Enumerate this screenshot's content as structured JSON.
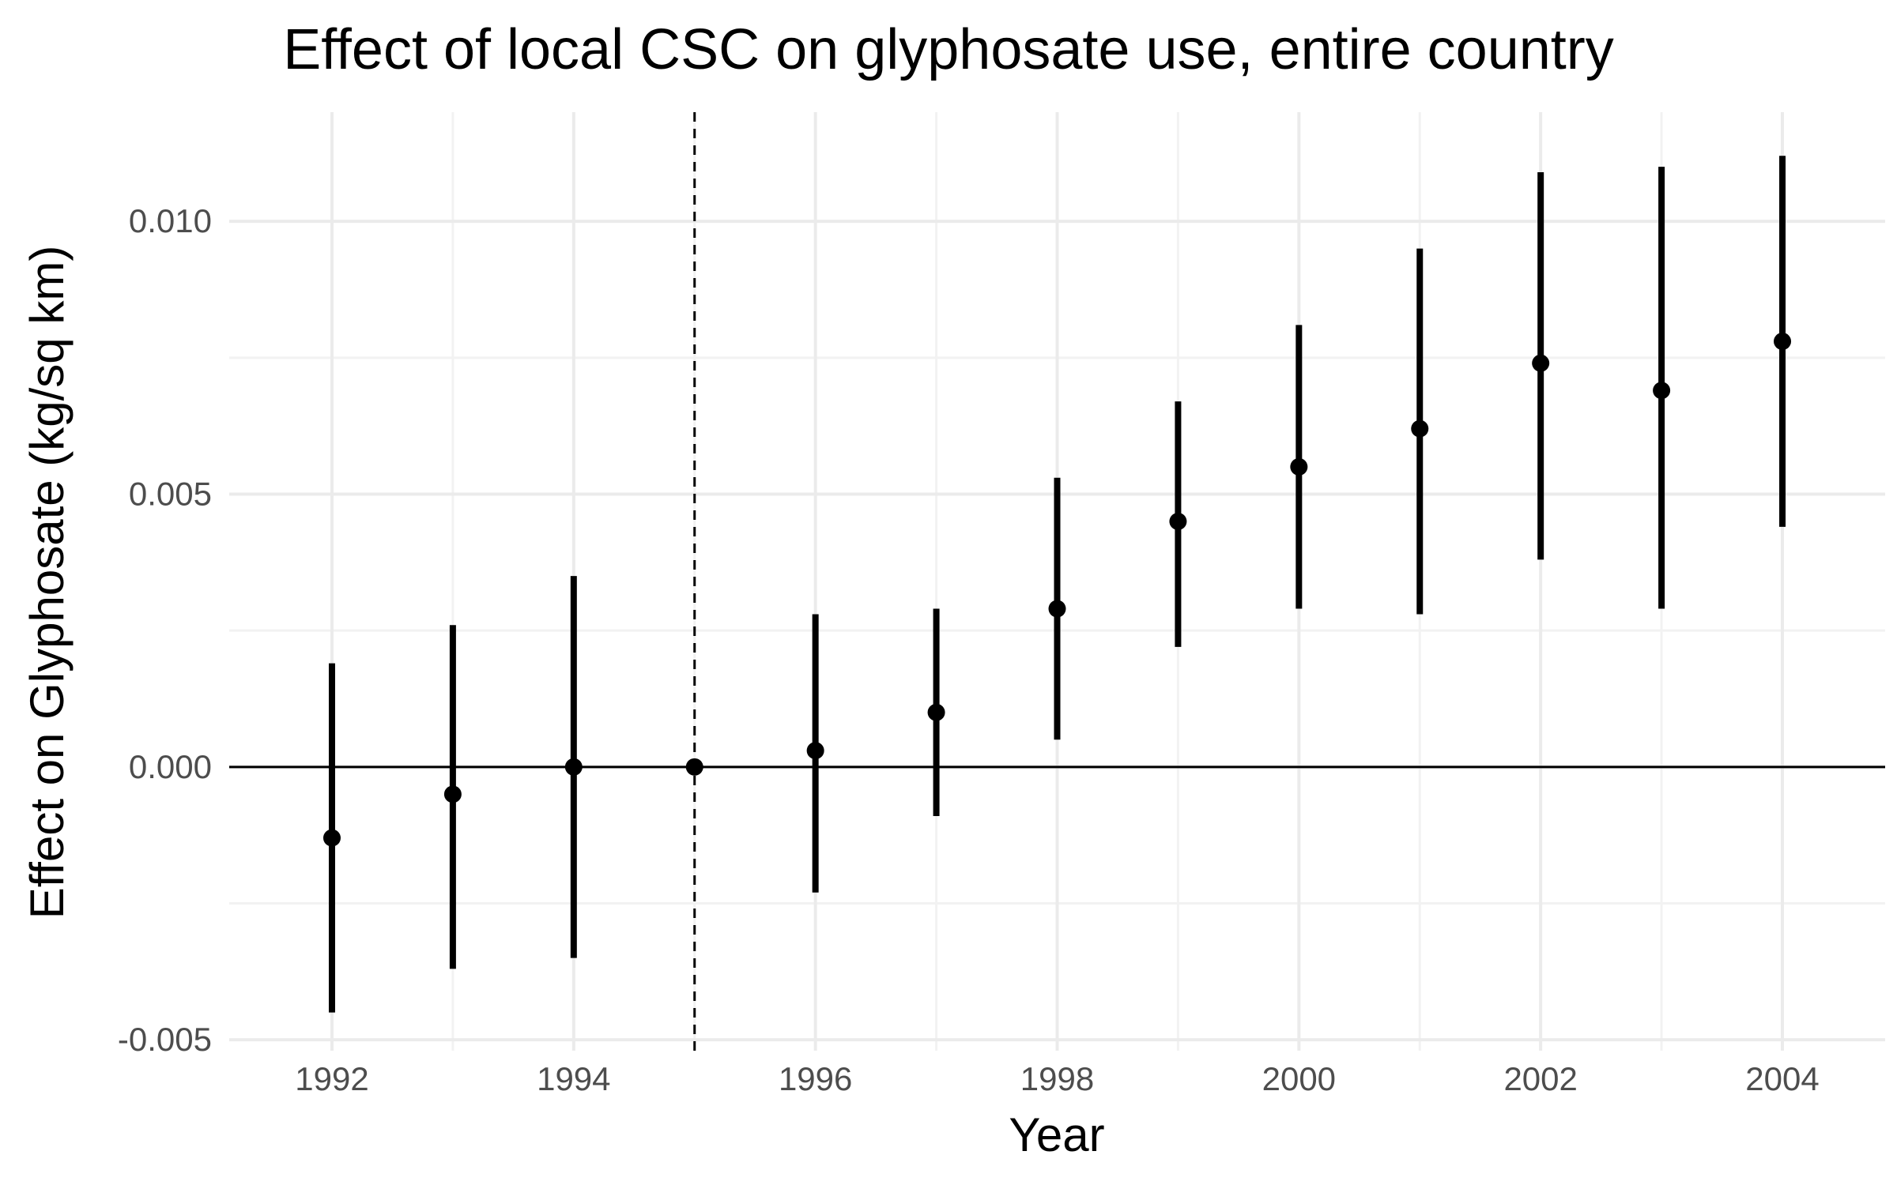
{
  "chart_data": {
    "type": "errorbar",
    "title": "Effect of local CSC on glyphosate use, entire country",
    "xlabel": "Year",
    "ylabel": "Effect on Glyphosate (kg/sq km)",
    "xlim": [
      1991.15,
      2004.85
    ],
    "ylim": [
      -0.0052,
      0.012
    ],
    "xticks": [
      1992,
      1994,
      1996,
      1998,
      2000,
      2002,
      2004
    ],
    "yticks": [
      -0.005,
      0.0,
      0.005,
      0.01
    ],
    "ytick_labels": [
      "-0.005",
      "0.000",
      "0.005",
      "0.010"
    ],
    "reference_vline_x": 1995,
    "reference_hline_y": 0,
    "grid": true,
    "series": [
      {
        "points": [
          {
            "x": 1992,
            "y": -0.0013,
            "lower": -0.0045,
            "upper": 0.0019
          },
          {
            "x": 1993,
            "y": -0.0005,
            "lower": -0.0037,
            "upper": 0.0026
          },
          {
            "x": 1994,
            "y": 0.0,
            "lower": -0.0035,
            "upper": 0.0035
          },
          {
            "x": 1995,
            "y": 0.0,
            "lower": 0.0,
            "upper": 0.0
          },
          {
            "x": 1996,
            "y": 0.0003,
            "lower": -0.0023,
            "upper": 0.0028
          },
          {
            "x": 1997,
            "y": 0.001,
            "lower": -0.0009,
            "upper": 0.0029
          },
          {
            "x": 1998,
            "y": 0.0029,
            "lower": 0.0005,
            "upper": 0.0053
          },
          {
            "x": 1999,
            "y": 0.0045,
            "lower": 0.0022,
            "upper": 0.0067
          },
          {
            "x": 2000,
            "y": 0.0055,
            "lower": 0.0029,
            "upper": 0.0081
          },
          {
            "x": 2001,
            "y": 0.0062,
            "lower": 0.0028,
            "upper": 0.0095
          },
          {
            "x": 2002,
            "y": 0.0074,
            "lower": 0.0038,
            "upper": 0.0109
          },
          {
            "x": 2003,
            "y": 0.0069,
            "lower": 0.0029,
            "upper": 0.011
          },
          {
            "x": 2004,
            "y": 0.0078,
            "lower": 0.0044,
            "upper": 0.0112
          }
        ]
      }
    ],
    "colors": {
      "points": "#000000",
      "grid_major": "#ebebeb",
      "grid_minor": "#f2f2f2",
      "tick_text": "#4d4d4d"
    }
  }
}
